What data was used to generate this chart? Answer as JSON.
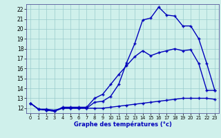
{
  "line1_x": [
    0,
    1,
    2,
    3,
    4,
    5,
    6,
    7,
    8,
    9,
    10,
    11,
    12,
    13,
    14,
    15,
    16,
    17,
    18,
    19,
    20,
    21,
    22,
    23
  ],
  "line1_y": [
    12.5,
    11.9,
    11.8,
    11.7,
    12.0,
    12.0,
    12.0,
    12.0,
    12.6,
    12.7,
    13.2,
    14.4,
    16.6,
    18.5,
    20.9,
    21.1,
    22.2,
    21.4,
    21.3,
    20.3,
    20.3,
    19.0,
    16.5,
    13.8
  ],
  "line2_x": [
    0,
    1,
    2,
    3,
    4,
    5,
    6,
    7,
    8,
    9,
    10,
    11,
    12,
    13,
    14,
    15,
    16,
    17,
    18,
    19,
    20,
    21,
    22,
    23
  ],
  "line2_y": [
    12.5,
    11.9,
    11.8,
    11.7,
    12.1,
    12.1,
    12.1,
    12.1,
    13.0,
    13.4,
    14.4,
    15.4,
    16.3,
    17.2,
    17.8,
    17.3,
    17.6,
    17.8,
    18.0,
    17.8,
    17.9,
    16.5,
    13.8,
    13.8
  ],
  "line3_x": [
    0,
    1,
    2,
    3,
    4,
    5,
    6,
    7,
    8,
    9,
    10,
    11,
    12,
    13,
    14,
    15,
    16,
    17,
    18,
    19,
    20,
    21,
    22,
    23
  ],
  "line3_y": [
    12.5,
    11.9,
    11.9,
    11.8,
    12.0,
    12.0,
    12.0,
    12.0,
    12.0,
    12.0,
    12.1,
    12.2,
    12.3,
    12.4,
    12.5,
    12.6,
    12.7,
    12.8,
    12.9,
    13.0,
    13.0,
    13.0,
    13.0,
    12.9
  ],
  "line_color": "#0000bb",
  "bg_color": "#cff0eb",
  "grid_color": "#99cccc",
  "xlabel": "Graphe des températures (°c)",
  "xlim": [
    -0.5,
    23.5
  ],
  "ylim": [
    11.5,
    22.5
  ],
  "yticks": [
    12,
    13,
    14,
    15,
    16,
    17,
    18,
    19,
    20,
    21,
    22
  ],
  "xticks": [
    0,
    1,
    2,
    3,
    4,
    5,
    6,
    7,
    8,
    9,
    10,
    11,
    12,
    13,
    14,
    15,
    16,
    17,
    18,
    19,
    20,
    21,
    22,
    23
  ],
  "marker": "+",
  "markersize": 3.5,
  "linewidth": 1.0
}
